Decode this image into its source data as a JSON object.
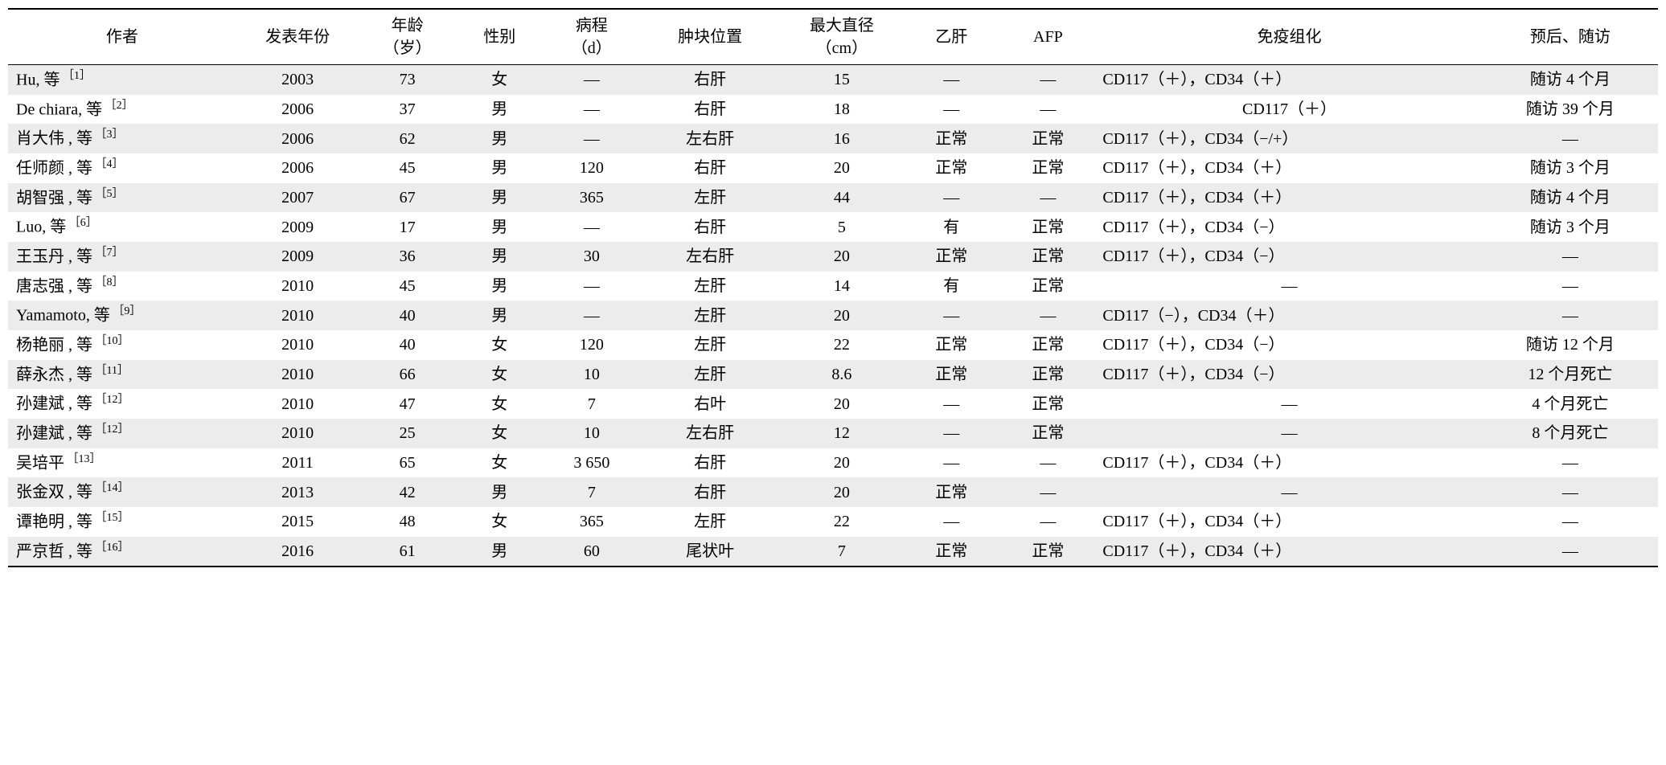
{
  "table": {
    "background_color": "#ffffff",
    "row_stripe_color": "#ececec",
    "border_color": "#000000",
    "font_family": "SimSun, Times New Roman, serif",
    "header_fontsize": 20,
    "body_fontsize": 20,
    "columns": [
      {
        "key": "author",
        "label_line1": "作者",
        "label_line2": "",
        "width_pct": 13,
        "align": "left"
      },
      {
        "key": "year",
        "label_line1": "发表年份",
        "label_line2": "",
        "width_pct": 7,
        "align": "center"
      },
      {
        "key": "age",
        "label_line1": "年龄",
        "label_line2": "（岁）",
        "width_pct": 5.5,
        "align": "center"
      },
      {
        "key": "sex",
        "label_line1": "性别",
        "label_line2": "",
        "width_pct": 5,
        "align": "center"
      },
      {
        "key": "course",
        "label_line1": "病程",
        "label_line2": "（d）",
        "width_pct": 5.5,
        "align": "center"
      },
      {
        "key": "location",
        "label_line1": "肿块位置",
        "label_line2": "",
        "width_pct": 8,
        "align": "center"
      },
      {
        "key": "diameter",
        "label_line1": "最大直径",
        "label_line2": "（cm）",
        "width_pct": 7,
        "align": "center"
      },
      {
        "key": "hbv",
        "label_line1": "乙肝",
        "label_line2": "",
        "width_pct": 5.5,
        "align": "center"
      },
      {
        "key": "afp",
        "label_line1": "AFP",
        "label_line2": "",
        "width_pct": 5.5,
        "align": "center"
      },
      {
        "key": "immuno",
        "label_line1": "免疫组化",
        "label_line2": "",
        "width_pct": 22,
        "align": "left"
      },
      {
        "key": "followup",
        "label_line1": "预后、随访",
        "label_line2": "",
        "width_pct": 10,
        "align": "center"
      }
    ],
    "rows": [
      {
        "author_name": "Hu, 等",
        "author_ref": "［1］",
        "year": "2003",
        "age": "73",
        "sex": "女",
        "course": "—",
        "location": "右肝",
        "diameter": "15",
        "hbv": "—",
        "afp": "—",
        "immuno": "CD117（＋），CD34（＋）",
        "immuno_centered": false,
        "followup": "随访 4 个月"
      },
      {
        "author_name": "De chiara, 等",
        "author_ref": "［2］",
        "year": "2006",
        "age": "37",
        "sex": "男",
        "course": "—",
        "location": "右肝",
        "diameter": "18",
        "hbv": "—",
        "afp": "—",
        "immuno": "CD117（＋）",
        "immuno_centered": true,
        "followup": "随访 39 个月"
      },
      {
        "author_name": "肖大伟 , 等",
        "author_ref": "［3］",
        "year": "2006",
        "age": "62",
        "sex": "男",
        "course": "—",
        "location": "左右肝",
        "diameter": "16",
        "hbv": "正常",
        "afp": "正常",
        "immuno": "CD117（＋），CD34（−/+）",
        "immuno_centered": false,
        "followup": "—"
      },
      {
        "author_name": "任师颜 , 等",
        "author_ref": "［4］",
        "year": "2006",
        "age": "45",
        "sex": "男",
        "course": "120",
        "location": "右肝",
        "diameter": "20",
        "hbv": "正常",
        "afp": "正常",
        "immuno": "CD117（＋），CD34（＋）",
        "immuno_centered": false,
        "followup": "随访 3 个月"
      },
      {
        "author_name": "胡智强 , 等",
        "author_ref": "［5］",
        "year": "2007",
        "age": "67",
        "sex": "男",
        "course": "365",
        "location": "左肝",
        "diameter": "44",
        "hbv": "—",
        "afp": "—",
        "immuno": "CD117（＋），CD34（＋）",
        "immuno_centered": false,
        "followup": "随访 4 个月"
      },
      {
        "author_name": "Luo, 等",
        "author_ref": "［6］",
        "year": "2009",
        "age": "17",
        "sex": "男",
        "course": "—",
        "location": "右肝",
        "diameter": "5",
        "hbv": "有",
        "afp": "正常",
        "immuno": "CD117（＋），CD34（−）",
        "immuno_centered": false,
        "followup": "随访 3 个月"
      },
      {
        "author_name": "王玉丹 , 等",
        "author_ref": "［7］",
        "year": "2009",
        "age": "36",
        "sex": "男",
        "course": "30",
        "location": "左右肝",
        "diameter": "20",
        "hbv": "正常",
        "afp": "正常",
        "immuno": "CD117（＋），CD34（−）",
        "immuno_centered": false,
        "followup": "—"
      },
      {
        "author_name": "唐志强 , 等",
        "author_ref": "［8］",
        "year": "2010",
        "age": "45",
        "sex": "男",
        "course": "—",
        "location": "左肝",
        "diameter": "14",
        "hbv": "有",
        "afp": "正常",
        "immuno": "—",
        "immuno_centered": true,
        "followup": "—"
      },
      {
        "author_name": "Yamamoto, 等",
        "author_ref": "［9］",
        "year": "2010",
        "age": "40",
        "sex": "男",
        "course": "—",
        "location": "左肝",
        "diameter": "20",
        "hbv": "—",
        "afp": "—",
        "immuno": "CD117（−），CD34（＋）",
        "immuno_centered": false,
        "followup": "—"
      },
      {
        "author_name": "杨艳丽 , 等",
        "author_ref": "［10］",
        "year": "2010",
        "age": "40",
        "sex": "女",
        "course": "120",
        "location": "左肝",
        "diameter": "22",
        "hbv": "正常",
        "afp": "正常",
        "immuno": "CD117（＋），CD34（−）",
        "immuno_centered": false,
        "followup": "随访 12 个月"
      },
      {
        "author_name": "薛永杰 , 等",
        "author_ref": "［11］",
        "year": "2010",
        "age": "66",
        "sex": "女",
        "course": "10",
        "location": "左肝",
        "diameter": "8.6",
        "hbv": "正常",
        "afp": "正常",
        "immuno": "CD117（＋），CD34（−）",
        "immuno_centered": false,
        "followup": "12 个月死亡"
      },
      {
        "author_name": "孙建斌 , 等",
        "author_ref": "［12］",
        "year": "2010",
        "age": "47",
        "sex": "女",
        "course": "7",
        "location": "右叶",
        "diameter": "20",
        "hbv": "—",
        "afp": "正常",
        "immuno": "—",
        "immuno_centered": true,
        "followup": "4 个月死亡"
      },
      {
        "author_name": "孙建斌 , 等",
        "author_ref": "［12］",
        "year": "2010",
        "age": "25",
        "sex": "女",
        "course": "10",
        "location": "左右肝",
        "diameter": "12",
        "hbv": "—",
        "afp": "正常",
        "immuno": "—",
        "immuno_centered": true,
        "followup": "8 个月死亡"
      },
      {
        "author_name": "吴培平",
        "author_ref": "［13］",
        "year": "2011",
        "age": "65",
        "sex": "女",
        "course": "3 650",
        "location": "右肝",
        "diameter": "20",
        "hbv": "—",
        "afp": "—",
        "immuno": "CD117（＋），CD34（＋）",
        "immuno_centered": false,
        "followup": "—"
      },
      {
        "author_name": "张金双 , 等",
        "author_ref": "［14］",
        "year": "2013",
        "age": "42",
        "sex": "男",
        "course": "7",
        "location": "右肝",
        "diameter": "20",
        "hbv": "正常",
        "afp": "—",
        "immuno": "—",
        "immuno_centered": true,
        "followup": "—"
      },
      {
        "author_name": "谭艳明 , 等",
        "author_ref": "［15］",
        "year": "2015",
        "age": "48",
        "sex": "女",
        "course": "365",
        "location": "左肝",
        "diameter": "22",
        "hbv": "—",
        "afp": "—",
        "immuno": "CD117（＋），CD34（＋）",
        "immuno_centered": false,
        "followup": "—"
      },
      {
        "author_name": "严京哲 , 等",
        "author_ref": "［16］",
        "year": "2016",
        "age": "61",
        "sex": "男",
        "course": "60",
        "location": "尾状叶",
        "diameter": "7",
        "hbv": "正常",
        "afp": "正常",
        "immuno": "CD117（＋），CD34（＋）",
        "immuno_centered": false,
        "followup": "—"
      }
    ]
  }
}
